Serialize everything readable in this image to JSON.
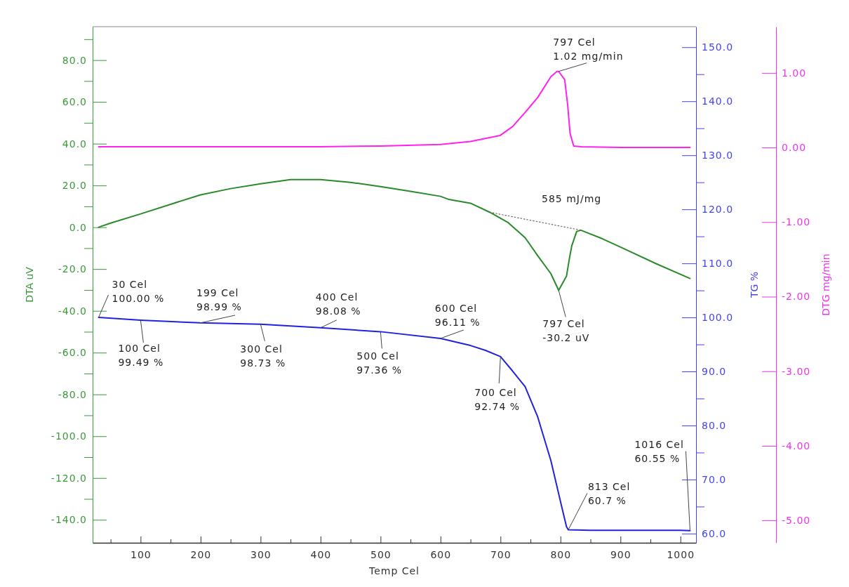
{
  "chart_data": {
    "type": "line",
    "xlabel": "Temp Cel",
    "ylabel": "DTA uV",
    "y2label": "TG %",
    "y3label": "DTG mg/min",
    "xlim": [
      20,
      1026
    ],
    "xticks": [
      {
        "value": 50,
        "label": null
      },
      100,
      {
        "value": 150,
        "label": null
      },
      200,
      {
        "value": 250,
        "label": null
      },
      300,
      {
        "value": 350,
        "label": null
      },
      400,
      {
        "value": 450,
        "label": null
      },
      500,
      {
        "value": 550,
        "label": null
      },
      600,
      {
        "value": 650,
        "label": null
      },
      700,
      {
        "value": 750,
        "label": null
      },
      800,
      {
        "value": 850,
        "label": null
      },
      900,
      {
        "value": 950,
        "label": null
      },
      1000
    ],
    "ylim": [
      -151,
      96
    ],
    "yticks": [
      {
        "value": -140,
        "label": "-140.0"
      },
      {
        "value": -130,
        "label": null
      },
      {
        "value": -120,
        "label": "-120.0"
      },
      {
        "value": -110,
        "label": null
      },
      {
        "value": -100,
        "label": "-100.0"
      },
      {
        "value": -90,
        "label": null
      },
      {
        "value": -80,
        "label": "-80.0"
      },
      {
        "value": -70,
        "label": null
      },
      {
        "value": -60,
        "label": "-60.0"
      },
      {
        "value": -50,
        "label": null
      },
      {
        "value": -40,
        "label": "-40.0"
      },
      {
        "value": -30,
        "label": null
      },
      {
        "value": -20,
        "label": "-20.0"
      },
      {
        "value": -10,
        "label": null
      },
      {
        "value": 0,
        "label": "0.0"
      },
      {
        "value": 10,
        "label": null
      },
      {
        "value": 20,
        "label": "20.0"
      },
      {
        "value": 30,
        "label": null
      },
      {
        "value": 40,
        "label": "40.0"
      },
      {
        "value": 50,
        "label": null
      },
      {
        "value": 60,
        "label": "60.0"
      },
      {
        "value": 70,
        "label": null
      },
      {
        "value": 80,
        "label": "80.0"
      },
      {
        "value": 90,
        "label": null
      }
    ],
    "y2lim": [
      58.3,
      153.8
    ],
    "y2ticks": [
      {
        "value": 60,
        "label": "60.0"
      },
      {
        "value": 65,
        "label": null
      },
      {
        "value": 70,
        "label": "70.0"
      },
      {
        "value": 75,
        "label": null
      },
      {
        "value": 80,
        "label": "80.0"
      },
      {
        "value": 85,
        "label": null
      },
      {
        "value": 90,
        "label": "90.0"
      },
      {
        "value": 95,
        "label": null
      },
      {
        "value": 100,
        "label": "100.0"
      },
      {
        "value": 105,
        "label": null
      },
      {
        "value": 110,
        "label": "110.0"
      },
      {
        "value": 115,
        "label": null
      },
      {
        "value": 120,
        "label": "120.0"
      },
      {
        "value": 125,
        "label": null
      },
      {
        "value": 130,
        "label": "130.0"
      },
      {
        "value": 135,
        "label": null
      },
      {
        "value": 140,
        "label": "140.0"
      },
      {
        "value": 145,
        "label": null
      },
      {
        "value": 150,
        "label": "150.0"
      }
    ],
    "y3lim": [
      -5.3,
      1.62
    ],
    "y3ticks": [
      {
        "value": -5,
        "label": "-5.00"
      },
      {
        "value": -4,
        "label": "-4.00"
      },
      {
        "value": -3,
        "label": "-3.00"
      },
      {
        "value": -2,
        "label": "-2.00"
      },
      {
        "value": -1,
        "label": "-1.00"
      },
      {
        "value": 0,
        "label": "0.00"
      },
      {
        "value": 1,
        "label": "1.00"
      }
    ],
    "series": [
      {
        "color": "#2a8a2a",
        "axis": "y",
        "x": [
          30,
          50,
          100,
          150,
          200,
          250,
          300,
          350,
          400,
          450,
          500,
          550,
          600,
          614,
          650,
          682,
          712,
          741,
          762,
          784,
          797,
          810,
          815,
          819,
          827,
          834,
          870,
          912,
          960,
          1016
        ],
        "values": [
          0.0,
          2.0,
          6.4,
          11.0,
          15.5,
          18.5,
          20.8,
          22.8,
          22.8,
          21.5,
          19.5,
          17.2,
          14.8,
          13.3,
          11.5,
          7.2,
          2.4,
          -5.0,
          -13.6,
          -22.2,
          -30.2,
          -23.4,
          -14.8,
          -8.7,
          -2.0,
          -1.4,
          -5.5,
          -11.1,
          -17.5,
          -24.5
        ]
      },
      {
        "color": "#666666",
        "axis": "y",
        "line_style": "dotted",
        "x": [
          682,
          834
        ],
        "values": [
          7.2,
          -1.4
        ]
      },
      {
        "color": "#2222dd",
        "axis": "y2",
        "x": [
          30,
          100,
          199,
          300,
          400,
          500,
          600,
          650,
          675,
          700,
          720,
          741,
          762,
          784,
          802,
          810,
          813,
          850,
          900,
          950,
          1000,
          1016
        ],
        "values": [
          100.0,
          99.49,
          98.99,
          98.73,
          98.08,
          97.36,
          96.11,
          94.8,
          93.9,
          92.74,
          90.1,
          87.2,
          81.6,
          73.5,
          65.0,
          61.3,
          60.7,
          60.6,
          60.6,
          60.6,
          60.6,
          60.55
        ]
      },
      {
        "color": "#ff22ee",
        "axis": "y3",
        "x": [
          30,
          200,
          400,
          500,
          600,
          650,
          699,
          720,
          741,
          762,
          784,
          794,
          797,
          807,
          812,
          816,
          822,
          835,
          900,
          1016
        ],
        "values": [
          0.01,
          0.01,
          0.01,
          0.02,
          0.04,
          0.08,
          0.16,
          0.28,
          0.47,
          0.67,
          0.95,
          1.02,
          1.02,
          0.91,
          0.57,
          0.19,
          0.02,
          0.01,
          0.0,
          0.0
        ]
      }
    ],
    "annotations": [
      {
        "text": "30 Cel\n100.00 %",
        "x": 30,
        "y": -43.1
      },
      {
        "text": "100 Cel\n99.49 %",
        "x": 100,
        "y": -44.5
      },
      {
        "text": "199 Cel\n98.99 %",
        "x": 199,
        "y": -45.8
      },
      {
        "text": "300 Cel\n98.73 %",
        "x": 300,
        "y": -46.4
      },
      {
        "text": "400 Cel\n98.08 %",
        "x": 400,
        "y": -48.1
      },
      {
        "text": "500 Cel\n97.36 %",
        "x": 500,
        "y": -50.0
      },
      {
        "text": "600 Cel\n96.11 %",
        "x": 600,
        "y": -53.2
      },
      {
        "text": "700 Cel\n92.74 %",
        "x": 700,
        "y": -61.9
      },
      {
        "text": "797 Cel\n-30.2 uV",
        "x": 797,
        "y": -30.2
      },
      {
        "text": "797 Cel\n1.02 mg/min",
        "x": 797,
        "y": 74.6
      },
      {
        "text": "813 Cel\n60.7 %",
        "x": 813,
        "y": -144.8
      },
      {
        "text": "1016 Cel\n60.55 %",
        "x": 1016,
        "y": -145.2
      },
      "585 mJ/mg"
    ]
  }
}
